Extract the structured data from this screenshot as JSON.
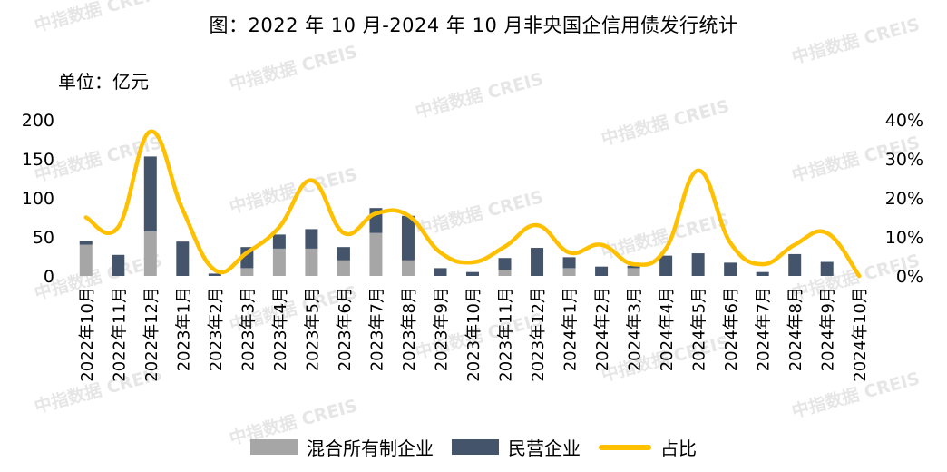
{
  "title": "图：2022 年 10 月-2024 年 10 月非央国企信用债发行统计",
  "unit_label": "单位：亿元",
  "watermark_text": "中指数据 CREIS",
  "colors": {
    "mixed": "#a6a6a6",
    "private": "#44546a",
    "ratio": "#ffc000"
  },
  "chart_data": {
    "type": "bar",
    "stacked": true,
    "categories": [
      "2022年10月",
      "2022年11月",
      "2022年12月",
      "2023年1月",
      "2023年2月",
      "2023年3月",
      "2023年4月",
      "2023年5月",
      "2023年6月",
      "2023年7月",
      "2023年8月",
      "2023年9月",
      "2023年10月",
      "2023年11月",
      "2023年12月",
      "2024年1月",
      "2024年2月",
      "2024年3月",
      "2024年4月",
      "2024年5月",
      "2024年6月",
      "2024年7月",
      "2024年8月",
      "2024年9月",
      "2024年10月"
    ],
    "series": [
      {
        "name": "混合所有制企业",
        "type": "bar",
        "axis": "left",
        "values": [
          40,
          0,
          57,
          0,
          0,
          10,
          35,
          35,
          20,
          55,
          20,
          0,
          0,
          8,
          0,
          10,
          0,
          10,
          0,
          0,
          0,
          0,
          0,
          0,
          0
        ]
      },
      {
        "name": "民营企业",
        "type": "bar",
        "axis": "left",
        "values": [
          5,
          27,
          96,
          44,
          3,
          27,
          18,
          25,
          17,
          32,
          57,
          10,
          5,
          15,
          36,
          14,
          12,
          3,
          26,
          29,
          17,
          5,
          28,
          18,
          0
        ]
      },
      {
        "name": "占比",
        "type": "line",
        "axis": "right",
        "smooth": true,
        "values": [
          15,
          12.5,
          37,
          17,
          1.5,
          6,
          12.5,
          24.5,
          11,
          16,
          15.5,
          6,
          3.5,
          7.5,
          13,
          6,
          8,
          3,
          7,
          27,
          8.5,
          3,
          8,
          11,
          0
        ]
      }
    ],
    "y_left": {
      "range": [
        0,
        200
      ],
      "ticks": [
        "0",
        "50",
        "100",
        "150",
        "200"
      ]
    },
    "y_right": {
      "range": [
        0,
        40
      ],
      "ticks": [
        "0%",
        "10%",
        "20%",
        "30%",
        "40%"
      ]
    },
    "legend": [
      "混合所有制企业",
      "民营企业",
      "占比"
    ],
    "legend_position": "bottom",
    "grid": false
  }
}
